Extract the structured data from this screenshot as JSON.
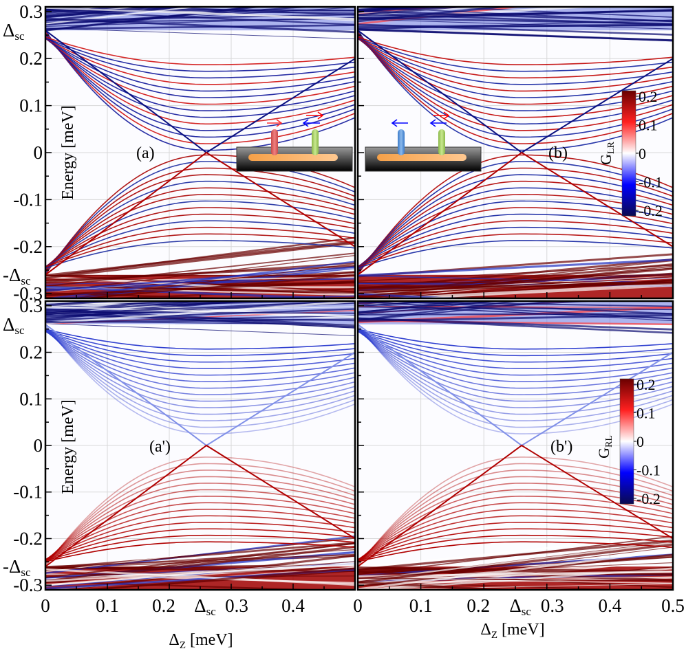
{
  "chart_data": [
    {
      "id": "a",
      "type": "heatmap",
      "panel_label": "(a)",
      "quantity": "G_LR",
      "xlabel": "",
      "ylabel": "Energy [meV]",
      "xlim": [
        0,
        0.5
      ],
      "ylim": [
        -0.31,
        0.31
      ],
      "delta_sc": 0.26,
      "gap_closing_x": 0.26,
      "upper_band_sign": "negative",
      "lower_band_sign": "positive",
      "inset": {
        "left_lead_arrows": [
          "right"
        ],
        "right_lead_arrows": [
          "right",
          "left"
        ],
        "left_lead_color": "#e06060"
      }
    },
    {
      "id": "b",
      "type": "heatmap",
      "panel_label": "(b)",
      "quantity": "G_LR",
      "xlabel": "",
      "ylabel": "",
      "xlim": [
        0,
        0.5
      ],
      "ylim": [
        -0.31,
        0.31
      ],
      "delta_sc": 0.26,
      "gap_closing_x": 0.26,
      "upper_band_sign": "mixed",
      "lower_band_sign": "mixed",
      "inset": {
        "left_lead_arrows": [
          "left"
        ],
        "right_lead_arrows": [
          "right",
          "left"
        ],
        "left_lead_color": "#5a9ad8"
      }
    },
    {
      "id": "a_prime",
      "type": "heatmap",
      "panel_label": "(a')",
      "quantity": "G_RL",
      "xlabel": "Δ_Z [meV]",
      "ylabel": "Energy [meV]",
      "xlim": [
        0,
        0.5
      ],
      "ylim": [
        -0.31,
        0.31
      ],
      "delta_sc": 0.26,
      "gap_closing_x": 0.26,
      "upper_band_sign": "negative",
      "lower_band_sign": "positive"
    },
    {
      "id": "b_prime",
      "type": "heatmap",
      "panel_label": "(b')",
      "quantity": "G_RL",
      "xlabel": "Δ_Z [meV]",
      "ylabel": "",
      "xlim": [
        0,
        0.5
      ],
      "ylim": [
        -0.31,
        0.31
      ],
      "delta_sc": 0.26,
      "gap_closing_x": 0.26,
      "upper_band_sign": "negative",
      "lower_band_sign": "positive"
    }
  ],
  "axes": {
    "x_ticks": [
      "0",
      "0.1",
      "0.2",
      "0.3",
      "0.4",
      "0.5"
    ],
    "x_tick_values": [
      0,
      0.1,
      0.2,
      0.3,
      0.4,
      0.5
    ],
    "x_special_tick": "Δsc",
    "y_ticks": [
      "0.3",
      "0.2",
      "0.1",
      "0",
      "-0.1",
      "-0.2",
      "-0.3"
    ],
    "y_tick_values": [
      0.3,
      0.2,
      0.1,
      0,
      -0.1,
      -0.2,
      -0.3
    ],
    "y_special_ticks": [
      "Δsc",
      "-Δsc"
    ],
    "ylabel": "Energy [meV]",
    "xlabel_main": "Δ",
    "xlabel_sub": "Z",
    "xlabel_unit": " [meV]",
    "delta_main": "Δ",
    "delta_sub": "sc"
  },
  "colorbars": [
    {
      "label_main": "G",
      "label_sub": "LR",
      "ticks": [
        "0.2",
        "0.1",
        "0",
        "-0.1",
        "-0.2"
      ],
      "range": [
        -0.2,
        0.2
      ]
    },
    {
      "label_main": "G",
      "label_sub": "RL",
      "ticks": [
        "0.2",
        "0.1",
        "0",
        "-0.1",
        "-0.2"
      ],
      "range": [
        -0.2,
        0.2
      ]
    }
  ],
  "colormap": {
    "neg_max": "#0a0a50",
    "neg": "#0000ff",
    "zero": "#ffffff",
    "pos": "#ff2020",
    "pos_max": "#7a0000"
  },
  "arrow_colors": {
    "red": "#ff0000",
    "blue": "#0000ff"
  }
}
